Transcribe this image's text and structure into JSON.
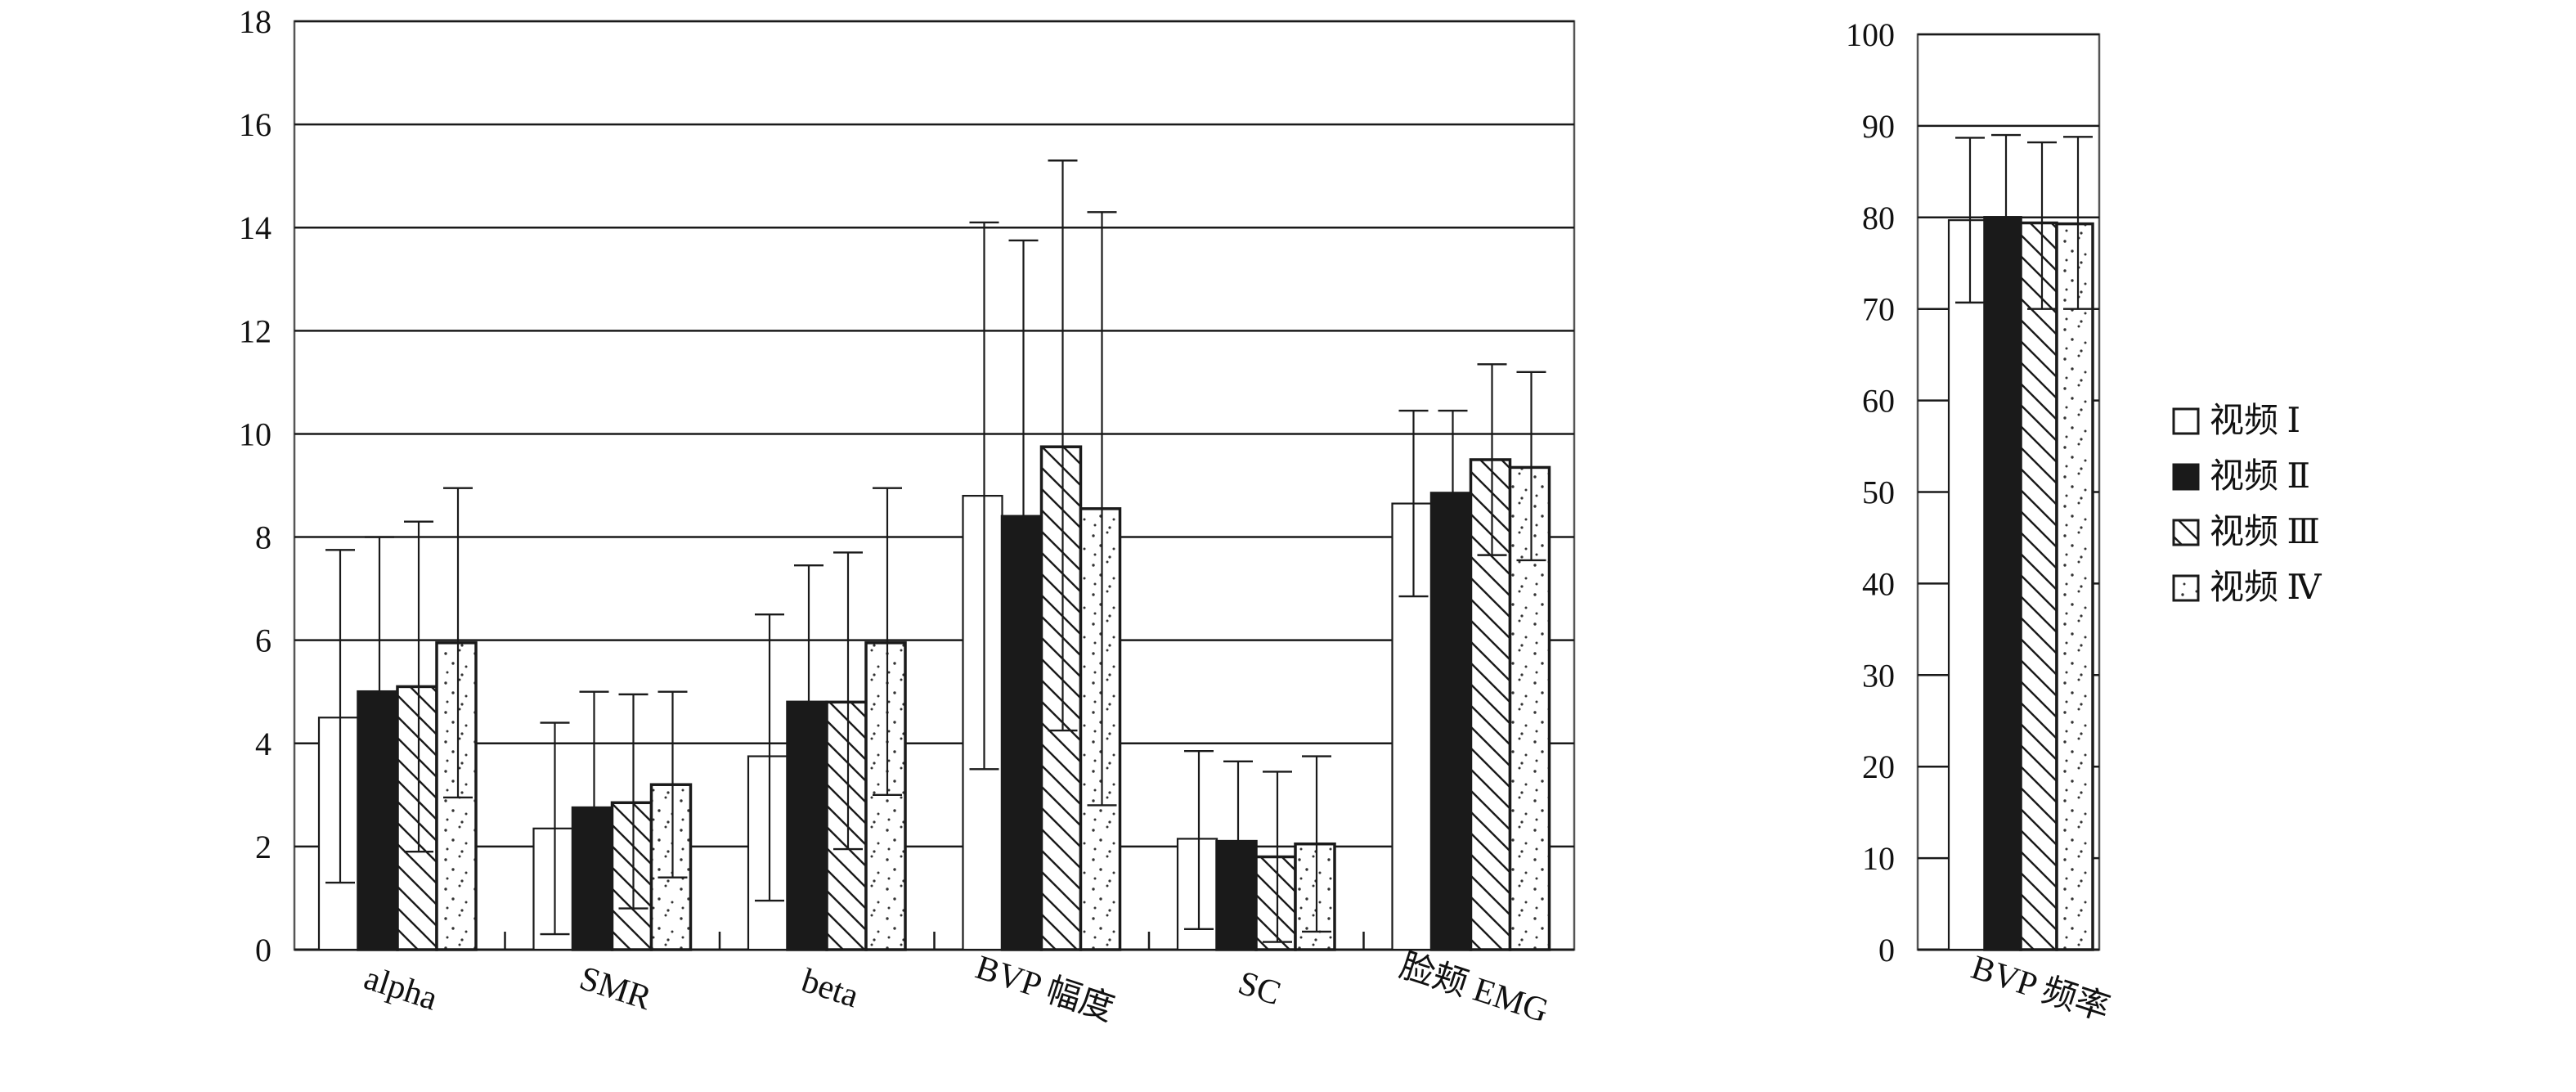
{
  "chart_data": [
    {
      "type": "bar",
      "title": "",
      "xlabel": "",
      "ylabel": "",
      "ylim": [
        0,
        18
      ],
      "yticks": [
        0,
        2,
        4,
        6,
        8,
        10,
        12,
        14,
        16,
        18
      ],
      "grid": true,
      "error_bars": "upper and lower whiskers (mean ± SD)",
      "categories": [
        "alpha",
        "SMR",
        "beta",
        "BVP 幅度",
        "SC",
        "脸颊 EMG"
      ],
      "series": [
        {
          "name": "视频 Ⅰ",
          "pattern": "white",
          "values": [
            4.5,
            2.35,
            3.75,
            8.8,
            2.15,
            8.65
          ],
          "err_low": [
            1.3,
            0.3,
            0.95,
            3.5,
            0.4,
            6.85
          ],
          "err_high": [
            7.75,
            4.4,
            6.5,
            14.1,
            3.85,
            10.45
          ]
        },
        {
          "name": "视频 Ⅱ",
          "pattern": "black",
          "values": [
            5.0,
            2.75,
            4.8,
            8.4,
            2.1,
            8.85
          ],
          "err_low": [
            2.0,
            0.5,
            2.1,
            3.1,
            0.5,
            7.2
          ],
          "err_high": [
            8.0,
            5.0,
            7.45,
            13.75,
            3.65,
            10.45
          ]
        },
        {
          "name": "视频 Ⅲ",
          "pattern": "hatched",
          "values": [
            5.1,
            2.85,
            4.8,
            9.75,
            1.8,
            9.5
          ],
          "err_low": [
            1.9,
            0.8,
            1.95,
            4.25,
            0.15,
            7.65
          ],
          "err_high": [
            8.3,
            4.95,
            7.7,
            15.3,
            3.45,
            11.35
          ]
        },
        {
          "name": "视频 Ⅳ",
          "pattern": "dotted",
          "values": [
            5.95,
            3.2,
            5.95,
            8.55,
            2.05,
            9.35
          ],
          "err_low": [
            2.95,
            1.4,
            3.0,
            2.8,
            0.35,
            7.55
          ],
          "err_high": [
            8.95,
            5.0,
            8.95,
            14.3,
            3.75,
            11.2
          ]
        }
      ]
    },
    {
      "type": "bar",
      "title": "",
      "xlabel": "",
      "ylabel": "",
      "ylim": [
        0,
        100
      ],
      "yticks": [
        0,
        10,
        20,
        30,
        40,
        50,
        60,
        70,
        80,
        90,
        100
      ],
      "grid": true,
      "error_bars": "upper and lower whiskers (mean ± SD)",
      "categories": [
        "BVP 频率"
      ],
      "series": [
        {
          "name": "视频 Ⅰ",
          "pattern": "white",
          "values": [
            79.7
          ],
          "err_low": [
            70.7
          ],
          "err_high": [
            88.7
          ]
        },
        {
          "name": "视频 Ⅱ",
          "pattern": "black",
          "values": [
            80.0
          ],
          "err_low": [
            70.8
          ],
          "err_high": [
            89.0
          ]
        },
        {
          "name": "视频 Ⅲ",
          "pattern": "hatched",
          "values": [
            79.4
          ],
          "err_low": [
            70.0
          ],
          "err_high": [
            88.2
          ]
        },
        {
          "name": "视频 Ⅳ",
          "pattern": "dotted",
          "values": [
            79.3
          ],
          "err_low": [
            70.0
          ],
          "err_high": [
            88.8
          ]
        }
      ]
    }
  ],
  "legend": {
    "position": "right",
    "entries": [
      {
        "label": "视频 Ⅰ",
        "pattern": "white"
      },
      {
        "label": "视频 Ⅱ",
        "pattern": "black"
      },
      {
        "label": "视频 Ⅲ",
        "pattern": "hatched"
      },
      {
        "label": "视频 Ⅳ",
        "pattern": "dotted"
      }
    ]
  },
  "colors": {
    "bar_outline": "#1a1a1a",
    "grid": "#1a1a1a",
    "dark_fill": "#1a1a1a",
    "background": "#ffffff"
  }
}
